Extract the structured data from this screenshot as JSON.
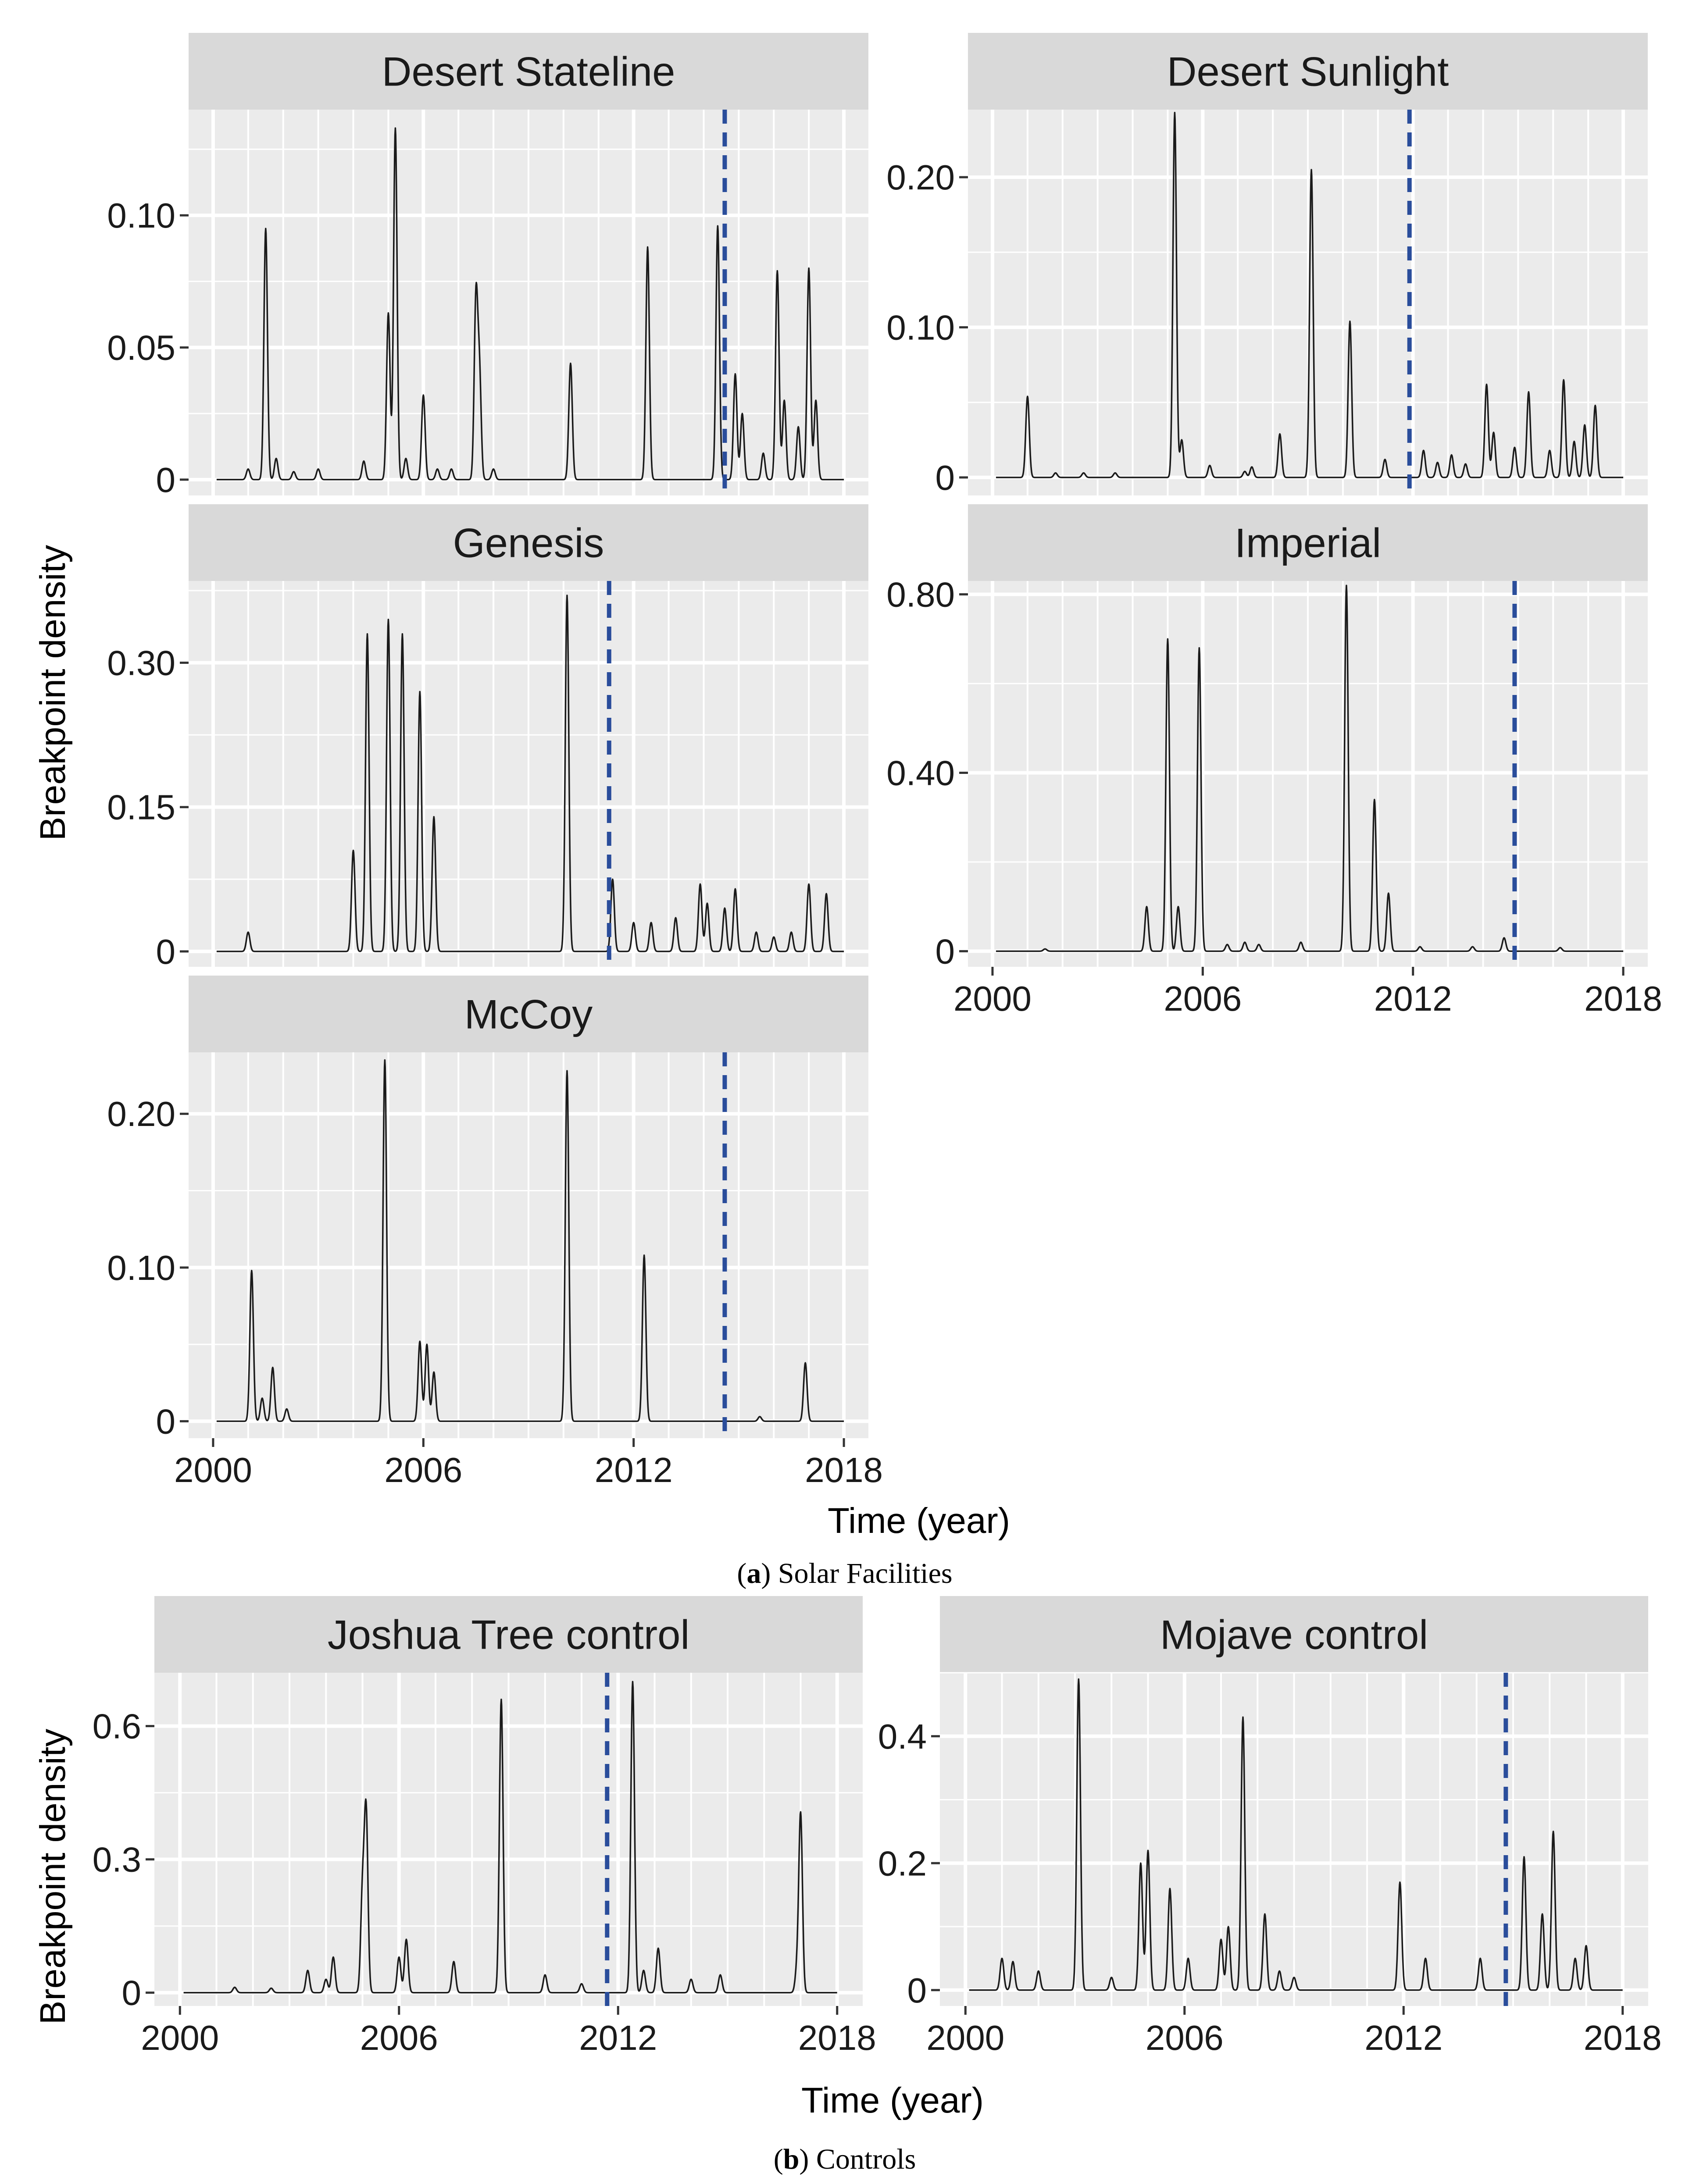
{
  "figure": {
    "section_a_caption_letter": "a",
    "section_a_caption_text": ") Solar Facilities",
    "section_b_caption_letter": "b",
    "section_b_caption_text": ") Controls",
    "section_a_ylabel": "Breakpoint density",
    "section_a_xlabel": "Time (year)",
    "section_b_ylabel": "Breakpoint density",
    "section_b_xlabel": "Time (year)",
    "x_tick_labels": [
      "2000",
      "2006",
      "2012",
      "2018"
    ],
    "colors": {
      "panel_bg": "#ebebeb",
      "strip_bg": "#d9d9d9",
      "grid": "#ffffff",
      "line": "#1a1a1a",
      "dashed_line": "#2a4d9b"
    }
  },
  "chart_data": [
    {
      "type": "line",
      "title": "Desert Stateline",
      "xlabel": "Time (year)",
      "ylabel": "Breakpoint density",
      "xlim": [
        1999.3,
        2018.7
      ],
      "ylim": [
        -0.006,
        0.14
      ],
      "y_ticks": [
        0,
        0.05,
        0.1
      ],
      "y_tick_labels": [
        "0",
        "0.05",
        "0.10"
      ],
      "x_ticks": [
        2000,
        2006,
        2012,
        2018
      ],
      "x_tick_labels": [
        "2000",
        "2006",
        "2012",
        "2018"
      ],
      "show_x_ticks": false,
      "vline": 2014.6,
      "peaks": [
        [
          2001.0,
          0.004
        ],
        [
          2001.5,
          0.095
        ],
        [
          2001.8,
          0.008
        ],
        [
          2002.3,
          0.003
        ],
        [
          2003.0,
          0.004
        ],
        [
          2004.3,
          0.007
        ],
        [
          2005.0,
          0.063
        ],
        [
          2005.2,
          0.133
        ],
        [
          2005.5,
          0.008
        ],
        [
          2006.0,
          0.032
        ],
        [
          2006.4,
          0.004
        ],
        [
          2006.8,
          0.004
        ],
        [
          2007.5,
          0.068
        ],
        [
          2007.6,
          0.04
        ],
        [
          2008.0,
          0.004
        ],
        [
          2010.2,
          0.044
        ],
        [
          2012.4,
          0.088
        ],
        [
          2014.4,
          0.096
        ],
        [
          2014.9,
          0.04
        ],
        [
          2015.1,
          0.025
        ],
        [
          2015.7,
          0.01
        ],
        [
          2016.1,
          0.079
        ],
        [
          2016.3,
          0.03
        ],
        [
          2016.7,
          0.02
        ],
        [
          2017.0,
          0.08
        ],
        [
          2017.2,
          0.03
        ]
      ]
    },
    {
      "type": "line",
      "title": "Desert Sunlight",
      "xlabel": "Time (year)",
      "ylabel": "Breakpoint density",
      "xlim": [
        1999.3,
        2018.7
      ],
      "ylim": [
        -0.012,
        0.245
      ],
      "y_ticks": [
        0,
        0.1,
        0.2
      ],
      "y_tick_labels": [
        "0",
        "0.10",
        "0.20"
      ],
      "x_ticks": [
        2000,
        2006,
        2012,
        2018
      ],
      "x_tick_labels": [
        "2000",
        "2006",
        "2012",
        "2018"
      ],
      "show_x_ticks": false,
      "vline": 2011.9,
      "peaks": [
        [
          2001.0,
          0.054
        ],
        [
          2001.8,
          0.003
        ],
        [
          2002.6,
          0.003
        ],
        [
          2003.5,
          0.003
        ],
        [
          2005.2,
          0.243
        ],
        [
          2005.4,
          0.025
        ],
        [
          2006.2,
          0.008
        ],
        [
          2007.2,
          0.004
        ],
        [
          2007.4,
          0.007
        ],
        [
          2008.2,
          0.029
        ],
        [
          2009.1,
          0.205
        ],
        [
          2010.2,
          0.104
        ],
        [
          2011.2,
          0.012
        ],
        [
          2012.3,
          0.018
        ],
        [
          2012.7,
          0.01
        ],
        [
          2013.1,
          0.015
        ],
        [
          2013.5,
          0.009
        ],
        [
          2014.1,
          0.062
        ],
        [
          2014.3,
          0.03
        ],
        [
          2014.9,
          0.02
        ],
        [
          2015.3,
          0.057
        ],
        [
          2015.9,
          0.018
        ],
        [
          2016.3,
          0.065
        ],
        [
          2016.6,
          0.024
        ],
        [
          2016.9,
          0.035
        ],
        [
          2017.2,
          0.048
        ]
      ]
    },
    {
      "type": "line",
      "title": "Genesis",
      "xlabel": "Time (year)",
      "ylabel": "Breakpoint density",
      "xlim": [
        1999.3,
        2018.7
      ],
      "ylim": [
        -0.016,
        0.385
      ],
      "y_ticks": [
        0,
        0.15,
        0.3
      ],
      "y_tick_labels": [
        "0",
        "0.15",
        "0.30"
      ],
      "x_ticks": [
        2000,
        2006,
        2012,
        2018
      ],
      "x_tick_labels": [
        "2000",
        "2006",
        "2012",
        "2018"
      ],
      "show_x_ticks": false,
      "vline": 2011.3,
      "peaks": [
        [
          2001.0,
          0.02
        ],
        [
          2004.0,
          0.105
        ],
        [
          2004.4,
          0.33
        ],
        [
          2005.0,
          0.345
        ],
        [
          2005.4,
          0.33
        ],
        [
          2005.9,
          0.27
        ],
        [
          2006.3,
          0.14
        ],
        [
          2010.1,
          0.37
        ],
        [
          2011.4,
          0.075
        ],
        [
          2012.0,
          0.03
        ],
        [
          2012.5,
          0.03
        ],
        [
          2013.2,
          0.035
        ],
        [
          2013.9,
          0.07
        ],
        [
          2014.1,
          0.05
        ],
        [
          2014.6,
          0.045
        ],
        [
          2014.9,
          0.065
        ],
        [
          2015.5,
          0.02
        ],
        [
          2016.0,
          0.015
        ],
        [
          2016.5,
          0.02
        ],
        [
          2017.0,
          0.07
        ],
        [
          2017.5,
          0.06
        ]
      ]
    },
    {
      "type": "line",
      "title": "Imperial",
      "xlabel": "Time (year)",
      "ylabel": "Breakpoint density",
      "xlim": [
        1999.3,
        2018.7
      ],
      "ylim": [
        -0.035,
        0.83
      ],
      "y_ticks": [
        0,
        0.4,
        0.8
      ],
      "y_tick_labels": [
        "0",
        "0.40",
        "0.80"
      ],
      "x_ticks": [
        2000,
        2006,
        2012,
        2018
      ],
      "x_tick_labels": [
        "2000",
        "2006",
        "2012",
        "2018"
      ],
      "show_x_ticks": true,
      "vline": 2014.9,
      "peaks": [
        [
          2001.5,
          0.005
        ],
        [
          2004.4,
          0.1
        ],
        [
          2005.0,
          0.7
        ],
        [
          2005.3,
          0.1
        ],
        [
          2005.9,
          0.68
        ],
        [
          2006.7,
          0.015
        ],
        [
          2007.2,
          0.02
        ],
        [
          2007.6,
          0.015
        ],
        [
          2008.8,
          0.02
        ],
        [
          2010.1,
          0.82
        ],
        [
          2010.9,
          0.34
        ],
        [
          2011.3,
          0.13
        ],
        [
          2012.2,
          0.01
        ],
        [
          2013.7,
          0.01
        ],
        [
          2014.6,
          0.03
        ],
        [
          2016.2,
          0.008
        ]
      ]
    },
    {
      "type": "line",
      "title": "McCoy",
      "xlabel": "Time (year)",
      "ylabel": "Breakpoint density",
      "xlim": [
        1999.3,
        2018.7
      ],
      "ylim": [
        -0.011,
        0.24
      ],
      "y_ticks": [
        0,
        0.1,
        0.2
      ],
      "y_tick_labels": [
        "0",
        "0.10",
        "0.20"
      ],
      "x_ticks": [
        2000,
        2006,
        2012,
        2018
      ],
      "x_tick_labels": [
        "2000",
        "2006",
        "2012",
        "2018"
      ],
      "show_x_ticks": true,
      "vline": 2014.6,
      "peaks": [
        [
          2001.1,
          0.098
        ],
        [
          2001.4,
          0.015
        ],
        [
          2001.7,
          0.035
        ],
        [
          2002.1,
          0.008
        ],
        [
          2004.9,
          0.235
        ],
        [
          2005.9,
          0.052
        ],
        [
          2006.1,
          0.05
        ],
        [
          2006.3,
          0.032
        ],
        [
          2010.1,
          0.228
        ],
        [
          2012.3,
          0.108
        ],
        [
          2015.6,
          0.003
        ],
        [
          2016.9,
          0.038
        ]
      ]
    },
    {
      "type": "line",
      "title": "Joshua Tree control",
      "xlabel": "Time (year)",
      "ylabel": "Breakpoint density",
      "xlim": [
        1999.3,
        2018.7
      ],
      "ylim": [
        -0.03,
        0.72
      ],
      "y_ticks": [
        0,
        0.3,
        0.6
      ],
      "y_tick_labels": [
        "0",
        "0.3",
        "0.6"
      ],
      "x_ticks": [
        2000,
        2006,
        2012,
        2018
      ],
      "x_tick_labels": [
        "2000",
        "2006",
        "2012",
        "2018"
      ],
      "show_x_ticks": true,
      "vline": 2011.7,
      "peaks": [
        [
          2001.5,
          0.012
        ],
        [
          2002.5,
          0.01
        ],
        [
          2003.5,
          0.05
        ],
        [
          2004.0,
          0.03
        ],
        [
          2004.2,
          0.08
        ],
        [
          2005.0,
          0.22
        ],
        [
          2005.1,
          0.4
        ],
        [
          2006.0,
          0.08
        ],
        [
          2006.2,
          0.12
        ],
        [
          2007.5,
          0.07
        ],
        [
          2008.8,
          0.66
        ],
        [
          2010.0,
          0.04
        ],
        [
          2011.0,
          0.02
        ],
        [
          2012.4,
          0.7
        ],
        [
          2012.7,
          0.05
        ],
        [
          2013.1,
          0.1
        ],
        [
          2014.0,
          0.03
        ],
        [
          2014.8,
          0.04
        ],
        [
          2016.9,
          0.05
        ],
        [
          2017.0,
          0.4
        ]
      ]
    },
    {
      "type": "line",
      "title": "Mojave control",
      "xlabel": "Time (year)",
      "ylabel": "Breakpoint density",
      "xlim": [
        1999.3,
        2018.7
      ],
      "ylim": [
        -0.025,
        0.5
      ],
      "y_ticks": [
        0,
        0.2,
        0.4
      ],
      "y_tick_labels": [
        "0",
        "0.2",
        "0.4"
      ],
      "x_ticks": [
        2000,
        2006,
        2012,
        2018
      ],
      "x_tick_labels": [
        "2000",
        "2006",
        "2012",
        "2018"
      ],
      "show_x_ticks": true,
      "vline": 2014.8,
      "peaks": [
        [
          2001.0,
          0.05
        ],
        [
          2001.3,
          0.045
        ],
        [
          2002.0,
          0.03
        ],
        [
          2003.1,
          0.49
        ],
        [
          2004.0,
          0.02
        ],
        [
          2004.8,
          0.2
        ],
        [
          2005.0,
          0.22
        ],
        [
          2005.6,
          0.16
        ],
        [
          2006.1,
          0.05
        ],
        [
          2007.0,
          0.08
        ],
        [
          2007.2,
          0.1
        ],
        [
          2007.6,
          0.43
        ],
        [
          2008.2,
          0.12
        ],
        [
          2008.6,
          0.03
        ],
        [
          2009.0,
          0.02
        ],
        [
          2011.9,
          0.17
        ],
        [
          2012.6,
          0.05
        ],
        [
          2014.1,
          0.05
        ],
        [
          2015.3,
          0.21
        ],
        [
          2015.8,
          0.12
        ],
        [
          2016.1,
          0.25
        ],
        [
          2016.7,
          0.05
        ],
        [
          2017.0,
          0.07
        ]
      ]
    }
  ]
}
